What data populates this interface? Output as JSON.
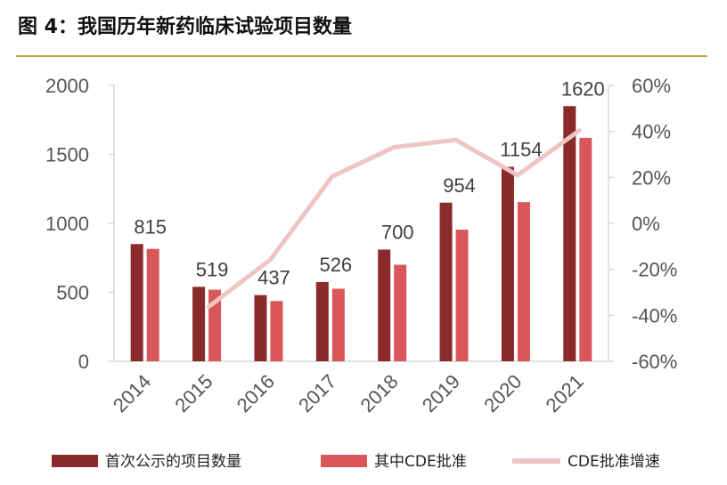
{
  "title": "图 4：我国历年新药临床试验项目数量",
  "colors": {
    "title_rule": "#c8a04a",
    "series_first": "#8b2a2a",
    "series_cde": "#d9575a",
    "series_growth": "#efc4c4",
    "axis": "#d9d9d9"
  },
  "chart_data": {
    "type": "bar",
    "categories": [
      "2014",
      "2015",
      "2016",
      "2017",
      "2018",
      "2019",
      "2020",
      "2021"
    ],
    "series": [
      {
        "name": "首次公示的项目数量",
        "type": "bar",
        "axis": "left",
        "values": [
          850,
          540,
          480,
          575,
          810,
          1150,
          1410,
          1850
        ]
      },
      {
        "name": "其中CDE批准",
        "type": "bar",
        "axis": "left",
        "values": [
          815,
          519,
          437,
          526,
          700,
          954,
          1154,
          1620
        ]
      },
      {
        "name": "CDE批准增速",
        "type": "line",
        "axis": "right",
        "unit": "%",
        "values": [
          null,
          -36.3,
          -15.8,
          20.4,
          33.1,
          36.3,
          21.0,
          40.4
        ]
      }
    ],
    "data_labels": [
      "815",
      "519",
      "437",
      "526",
      "700",
      "954",
      "1154",
      "1620"
    ],
    "ylim": [
      0,
      2000
    ],
    "yticks": [
      "0",
      "500",
      "1000",
      "1500",
      "2000"
    ],
    "y2lim": [
      -60,
      60
    ],
    "y2ticks": [
      "-60%",
      "-40%",
      "-20%",
      "0%",
      "20%",
      "40%",
      "60%"
    ],
    "legend_position": "bottom",
    "grid": false
  }
}
